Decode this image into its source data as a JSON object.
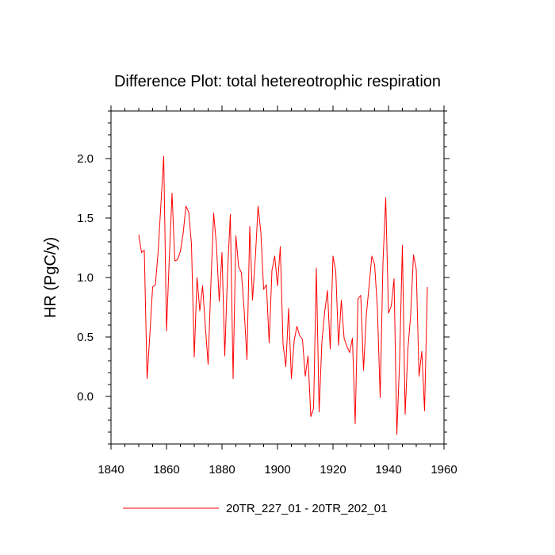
{
  "chart_data": {
    "type": "line",
    "title": "Difference Plot: total hetereotrophic respiration",
    "xlabel": "",
    "ylabel": "HR  (PgC/y)",
    "xlim": [
      1840,
      1960
    ],
    "ylim": [
      -0.4,
      2.4
    ],
    "x_ticks": [
      1840,
      1860,
      1880,
      1900,
      1920,
      1940,
      1960
    ],
    "x_tick_labels": [
      "1840",
      "1860",
      "1880",
      "1900",
      "1920",
      "1940",
      "1960"
    ],
    "y_ticks": [
      0.0,
      0.5,
      1.0,
      1.5,
      2.0
    ],
    "y_tick_labels": [
      "0.0",
      "0.5",
      "1.0",
      "1.5",
      "2.0"
    ],
    "series": [
      {
        "name": "20TR_227_01 - 20TR_202_01",
        "color": "#ff0000",
        "x": [
          1850,
          1851,
          1852,
          1853,
          1854,
          1855,
          1856,
          1857,
          1858,
          1859,
          1860,
          1861,
          1862,
          1863,
          1864,
          1865,
          1866,
          1867,
          1868,
          1869,
          1870,
          1871,
          1872,
          1873,
          1874,
          1875,
          1876,
          1877,
          1878,
          1879,
          1880,
          1881,
          1882,
          1883,
          1884,
          1885,
          1886,
          1887,
          1888,
          1889,
          1890,
          1891,
          1892,
          1893,
          1894,
          1895,
          1896,
          1897,
          1898,
          1899,
          1900,
          1901,
          1902,
          1903,
          1904,
          1905,
          1906,
          1907,
          1908,
          1909,
          1910,
          1911,
          1912,
          1913,
          1914,
          1915,
          1916,
          1917,
          1918,
          1919,
          1920,
          1921,
          1922,
          1923,
          1924,
          1925,
          1926,
          1927,
          1928,
          1929,
          1930,
          1931,
          1932,
          1933,
          1934,
          1935,
          1936,
          1937,
          1938,
          1939,
          1940,
          1941,
          1942,
          1943,
          1944,
          1945,
          1946,
          1947,
          1948,
          1949,
          1950,
          1951,
          1952,
          1953,
          1954
        ],
        "values": [
          1.36,
          1.21,
          1.23,
          0.15,
          0.52,
          0.92,
          0.94,
          1.22,
          1.62,
          2.02,
          0.55,
          1.16,
          1.71,
          1.14,
          1.15,
          1.22,
          1.37,
          1.6,
          1.55,
          1.28,
          0.33,
          1.0,
          0.72,
          0.93,
          0.59,
          0.27,
          0.95,
          1.54,
          1.27,
          0.8,
          1.21,
          0.34,
          1.04,
          1.53,
          0.15,
          1.35,
          1.09,
          1.04,
          0.72,
          0.31,
          1.43,
          0.81,
          1.16,
          1.6,
          1.38,
          0.9,
          0.94,
          0.45,
          1.06,
          1.18,
          0.93,
          1.26,
          0.44,
          0.25,
          0.74,
          0.15,
          0.47,
          0.59,
          0.51,
          0.48,
          0.17,
          0.34,
          -0.17,
          -0.1,
          1.08,
          -0.13,
          0.46,
          0.71,
          0.89,
          0.4,
          1.18,
          1.05,
          0.43,
          0.81,
          0.49,
          0.42,
          0.37,
          0.49,
          -0.23,
          0.82,
          0.85,
          0.22,
          0.68,
          0.93,
          1.18,
          1.11,
          0.74,
          -0.01,
          1.12,
          1.67,
          0.7,
          0.76,
          0.99,
          -0.32,
          0.3,
          1.27,
          -0.15,
          0.4,
          0.69,
          1.19,
          1.07,
          0.17,
          0.38,
          -0.12,
          0.92
        ]
      }
    ],
    "legend": {
      "position": "bottom-center",
      "entries": [
        "20TR_227_01 - 20TR_202_01"
      ]
    },
    "grid": false
  }
}
